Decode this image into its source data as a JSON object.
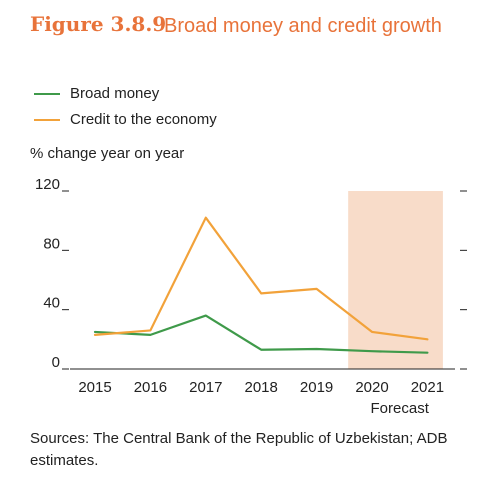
{
  "figure": {
    "number": "Figure 3.8.9",
    "title": "Broad money and credit growth"
  },
  "colors": {
    "title": "#e8733a",
    "broad_money": "#3f9a4a",
    "credit": "#f2a23a",
    "forecast_shade": "#f8dcc9"
  },
  "chart_data": {
    "type": "line",
    "x": [
      "2015",
      "2016",
      "2017",
      "2018",
      "2019",
      "2020",
      "2021"
    ],
    "forecast_label": "Forecast",
    "forecast_start": "2020",
    "ylabel": "% change year on year",
    "ylim": [
      0,
      120
    ],
    "yticks": [
      0,
      40,
      80,
      120
    ],
    "series": [
      {
        "name": "Broad money",
        "color": "#3f9a4a",
        "values": [
          25,
          23,
          36,
          13,
          13.5,
          12,
          11
        ]
      },
      {
        "name": "Credit to the economy",
        "color": "#f2a23a",
        "values": [
          23,
          26,
          102,
          51,
          54,
          25,
          20
        ]
      }
    ]
  },
  "sources": "Sources:  The Central Bank of the Republic of Uzbekistan; ADB estimates."
}
